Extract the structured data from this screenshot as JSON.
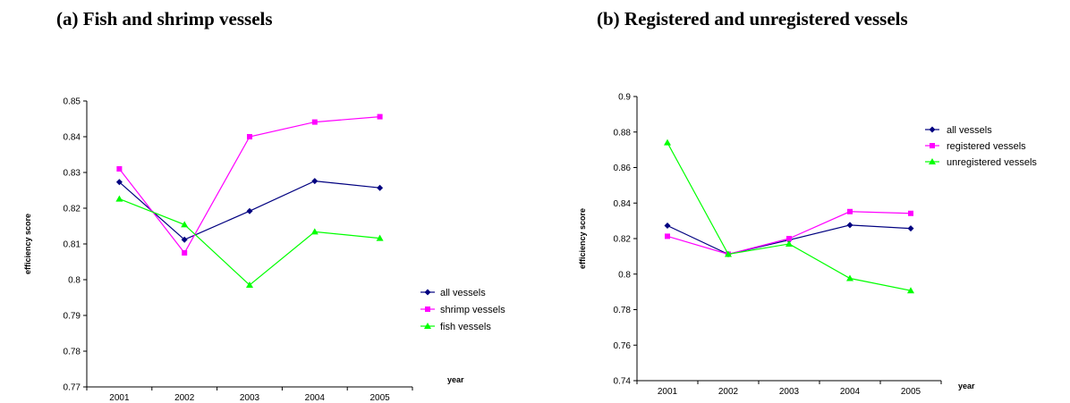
{
  "titles": {
    "a": "(a) Fish and shrimp vessels",
    "b": "(b) Registered and unregistered vessels"
  },
  "chart_data": [
    {
      "type": "line",
      "title": "(a) Fish and shrimp vessels",
      "xlabel": "year",
      "ylabel": "efficiency score",
      "categories": [
        "2001",
        "2002",
        "2003",
        "2004",
        "2005"
      ],
      "ylim": [
        0.77,
        0.85
      ],
      "yticks": [
        "0.77",
        "0.78",
        "0.79",
        "0.8",
        "0.81",
        "0.82",
        "0.83",
        "0.84",
        "0.85"
      ],
      "legend_position": "right",
      "series": [
        {
          "name": "all vessels",
          "color": "#000080",
          "marker": "diamond",
          "values": [
            0.8273,
            0.8112,
            0.8192,
            0.8276,
            0.8257
          ]
        },
        {
          "name": "shrimp vessels",
          "color": "#ff00ff",
          "marker": "square",
          "values": [
            0.831,
            0.8075,
            0.84,
            0.8441,
            0.8456
          ]
        },
        {
          "name": "fish vessels",
          "color": "#00ff00",
          "marker": "triangle",
          "values": [
            0.8226,
            0.8154,
            0.7985,
            0.8134,
            0.8116
          ]
        }
      ]
    },
    {
      "type": "line",
      "title": "(b) Registered and unregistered vessels",
      "xlabel": "year",
      "ylabel": "efficiency score",
      "categories": [
        "2001",
        "2002",
        "2003",
        "2004",
        "2005"
      ],
      "ylim": [
        0.74,
        0.9
      ],
      "yticks": [
        "0.74",
        "0.76",
        "0.78",
        "0.8",
        "0.82",
        "0.84",
        "0.86",
        "0.88",
        "0.9"
      ],
      "legend_position": "top-right",
      "series": [
        {
          "name": "all vessels",
          "color": "#000080",
          "marker": "diamond",
          "values": [
            0.8273,
            0.8112,
            0.8192,
            0.8276,
            0.8257
          ]
        },
        {
          "name": "registered vessels",
          "color": "#ff00ff",
          "marker": "square",
          "values": [
            0.8213,
            0.8112,
            0.82,
            0.8352,
            0.8342
          ]
        },
        {
          "name": "unregistered vessels",
          "color": "#00ff00",
          "marker": "triangle",
          "values": [
            0.874,
            0.8112,
            0.817,
            0.7976,
            0.7907
          ]
        }
      ]
    }
  ]
}
